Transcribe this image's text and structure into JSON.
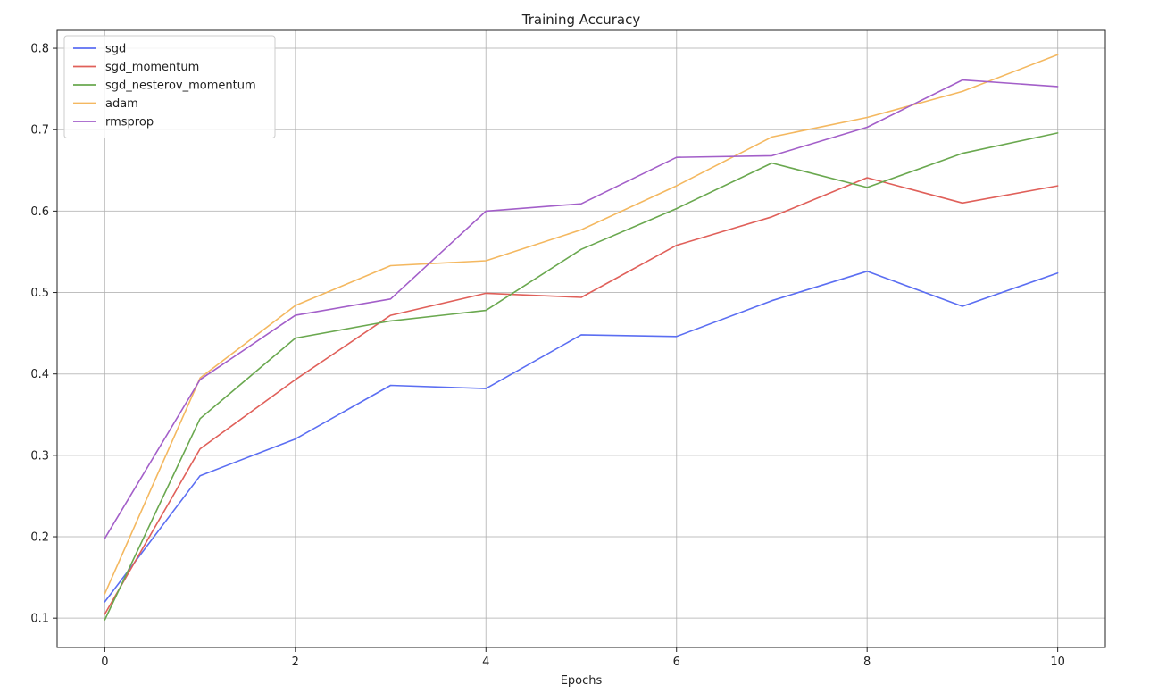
{
  "chart_data": {
    "type": "line",
    "title": "Training Accuracy",
    "xlabel": "Epochs",
    "ylabel": "",
    "x": [
      0,
      1,
      2,
      3,
      4,
      5,
      6,
      7,
      8,
      9,
      10
    ],
    "xlim": [
      -0.5,
      10.5
    ],
    "ylim": [
      0.064,
      0.822
    ],
    "xticks": [
      0,
      2,
      4,
      6,
      8,
      10
    ],
    "yticks": [
      0.1,
      0.2,
      0.3,
      0.4,
      0.5,
      0.6,
      0.7,
      0.8
    ],
    "xtick_labels": [
      "0",
      "2",
      "4",
      "6",
      "8",
      "10"
    ],
    "ytick_labels": [
      "0.1",
      "0.2",
      "0.3",
      "0.4",
      "0.5",
      "0.6",
      "0.7",
      "0.8"
    ],
    "grid": true,
    "legend_position": "top-left",
    "series": [
      {
        "name": "sgd",
        "color": "#5b6ef2",
        "values": [
          0.12,
          0.275,
          0.32,
          0.386,
          0.382,
          0.448,
          0.446,
          0.49,
          0.526,
          0.483,
          0.524
        ]
      },
      {
        "name": "sgd_momentum",
        "color": "#e0605a",
        "values": [
          0.105,
          0.308,
          0.393,
          0.472,
          0.499,
          0.494,
          0.558,
          0.593,
          0.641,
          0.61,
          0.631
        ]
      },
      {
        "name": "sgd_nesterov_momentum",
        "color": "#6aa84f",
        "values": [
          0.098,
          0.345,
          0.444,
          0.465,
          0.478,
          0.553,
          0.603,
          0.659,
          0.629,
          0.671,
          0.696
        ]
      },
      {
        "name": "adam",
        "color": "#f4b860",
        "values": [
          0.13,
          0.395,
          0.484,
          0.533,
          0.539,
          0.577,
          0.631,
          0.691,
          0.715,
          0.747,
          0.792
        ]
      },
      {
        "name": "rmsprop",
        "color": "#a35fc9",
        "values": [
          0.198,
          0.393,
          0.472,
          0.492,
          0.6,
          0.609,
          0.666,
          0.668,
          0.703,
          0.761,
          0.753
        ]
      }
    ]
  }
}
